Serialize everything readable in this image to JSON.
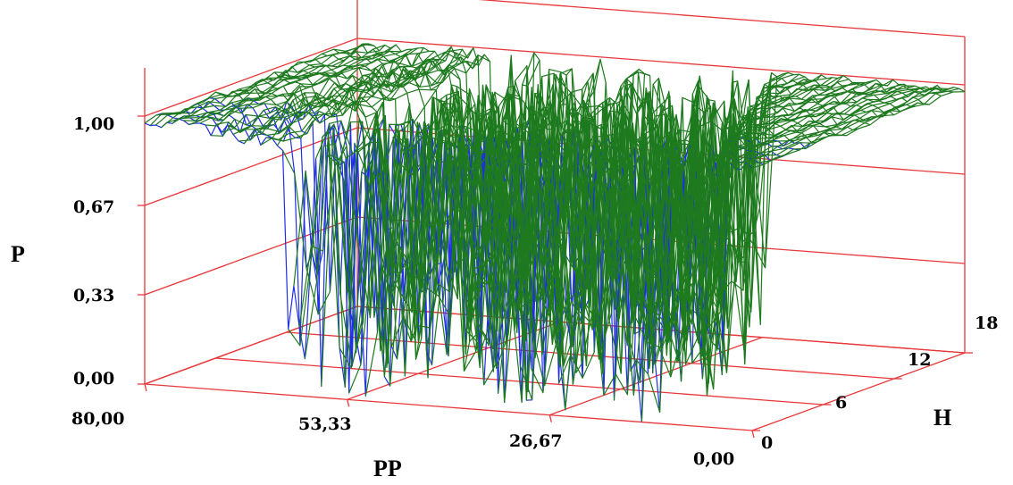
{
  "chart_data": {
    "type": "surface3d",
    "axes": {
      "y": {
        "label": "P",
        "ticks": [
          "0,00",
          "0,33",
          "0,67",
          "1,00"
        ],
        "range": [
          0,
          1
        ]
      },
      "x": {
        "label": "PP",
        "ticks": [
          "80,00",
          "53,33",
          "26,67",
          "0,00"
        ],
        "range": [
          80,
          0
        ]
      },
      "z": {
        "label": "H",
        "ticks": [
          "0",
          "6",
          "12",
          "18"
        ],
        "range": [
          0,
          18
        ]
      }
    },
    "grid": true,
    "colors": {
      "frame": "#e8383a",
      "surface_top": "#1e7a1e",
      "surface_underside": "#1f2fe6"
    },
    "surface": {
      "description_values": "P as a function of PP and H",
      "P_at_PP_80_to_60": 1.0,
      "P_at_PP_0_to_5": 1.0,
      "P_in_PP_5_to_60": "oscillating between 0.0 and 1.0"
    }
  }
}
